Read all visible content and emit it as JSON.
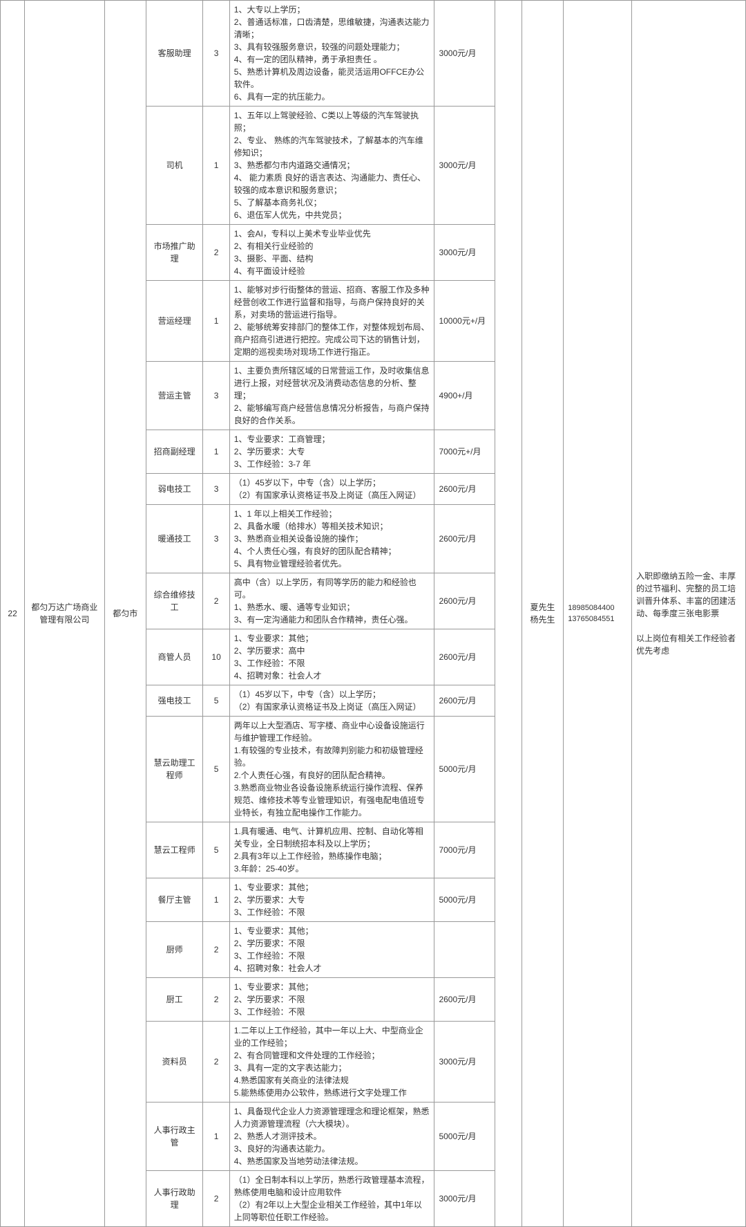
{
  "index": "22",
  "company": "都匀万达广场商业管理有限公司",
  "city": "都匀市",
  "contact": "夏先生\n杨先生",
  "phones": "18985084400\n13765084551",
  "benefits": "入职即缴纳五险一金、丰厚的过节福利、完整的员工培训晋升体系、丰富的团建活动、每季度三张电影票\n\n以上岗位有相关工作经验者优先考虑",
  "positions": [
    {
      "name": "客服助理",
      "count": "3",
      "req": "1、大专以上学历；\n2、普通话标准，口齿清楚，思维敏捷，沟通表达能力清晰；\n3、具有较强服务意识，较强的问题处理能力；\n4、有一定的团队精神，勇于承担责任 。\n5、熟悉计算机及周边设备，能灵活运用OFFCE办公软件。\n6、具有一定的抗压能力。",
      "salary": "3000元/月"
    },
    {
      "name": "司机",
      "count": "1",
      "req": "1、五年以上驾驶经验、C类以上等级的汽车驾驶执照；\n2、专业、 熟练的汽车驾驶技术，了解基本的汽车维修知识；\n3、熟悉都匀市内道路交通情况；\n4、 能力素质 良好的语言表达、沟通能力、责任心、较强的成本意识和服务意识；\n5、了解基本商务礼仪；\n6、退伍军人优先，中共党员；",
      "salary": "3000元/月"
    },
    {
      "name": "市场推广助理",
      "count": "2",
      "req": "1、会AI，专科以上美术专业毕业优先\n2、有相关行业经验的\n3、摄影、平面、结构\n4、有平面设计经验",
      "salary": "3000元/月"
    },
    {
      "name": "营运经理",
      "count": "1",
      "req": "1、能够对步行街整体的营运、招商、客服工作及多种经营创收工作进行监督和指导，与商户保持良好的关系，对卖场的营运进行指导。\n2、能够统筹安排部门的整体工作，对整体规划布局、商户招商引进进行把控。完成公司下达的销售计划，定期的巡视卖场对现场工作进行指正。",
      "salary": "10000元+/月"
    },
    {
      "name": "营运主管",
      "count": "3",
      "req": "1、主要负责所辖区域的日常营运工作，及时收集信息进行上报，对经营状况及消费动态信息的分析、整理；\n2、能够编写商户经营信息情况分析报告，与商户保持良好的合作关系。",
      "salary": "4900+/月"
    },
    {
      "name": "招商副经理",
      "count": "1",
      "req": "1、专业要求：工商管理；\n2、学历要求：大专\n3、工作经验：3-7 年",
      "salary": "7000元+/月"
    },
    {
      "name": "弱电技工",
      "count": "3",
      "req": "（1）45岁以下，中专（含）以上学历；\n（2）有国家承认资格证书及上岗证（高压入网证）",
      "salary": "2600元/月"
    },
    {
      "name": "暖通技工",
      "count": "3",
      "req": "1、1 年以上相关工作经验；\n2、具备水暖（给排水）等相关技术知识；\n3、熟悉商业相关设备设施的操作；\n4、个人责任心强，有良好的团队配合精神；\n5、具有物业管理经验者优先。",
      "salary": "2600元/月"
    },
    {
      "name": "综合维修技工",
      "count": "2",
      "req": "高中（含）以上学历，有同等学历的能力和经验也可。\n1、熟悉水、暖、通等专业知识；\n3、有一定沟通能力和团队合作精神，责任心强。",
      "salary": "2600元/月"
    },
    {
      "name": "商管人员",
      "count": "10",
      "req": "1、专业要求：其他；\n2、学历要求：高中\n3、工作经验：不限\n4、招聘对象：社会人才",
      "salary": "2600元/月"
    },
    {
      "name": "强电技工",
      "count": "5",
      "req": "（1）45岁以下，中专（含）以上学历；\n（2）有国家承认资格证书及上岗证（高压入网证）",
      "salary": "2600元/月"
    },
    {
      "name": "慧云助理工程师",
      "count": "5",
      "req": "两年以上大型酒店、写字楼、商业中心设备设施运行与维护管理工作经验。\n1.有较强的专业技术，有故障判别能力和初级管理经验。\n2.个人责任心强，有良好的团队配合精神。\n3.熟悉商业物业各设备设施系统运行操作流程、保养规范、维修技术等专业管理知识，有强电配电值班专业特长，有独立配电操作工作能力。",
      "salary": "5000元/月"
    },
    {
      "name": "慧云工程师",
      "count": "5",
      "req": "1.具有暖通、电气、计算机应用、控制、自动化等相关专业，全日制统招本科及以上学历；\n2.具有3年以上工作经验，熟练操作电脑；\n3.年龄：25-40岁。",
      "salary": "7000元/月"
    },
    {
      "name": "餐厅主管",
      "count": "1",
      "req": "1、专业要求：其他；\n2、学历要求：大专\n3、工作经验：不限",
      "salary": "5000元/月"
    },
    {
      "name": "厨师",
      "count": "2",
      "req": "1、专业要求：其他；\n2、学历要求：不限\n3、工作经验：不限\n4、招聘对象：社会人才",
      "salary": ""
    },
    {
      "name": "厨工",
      "count": "2",
      "req": "1、专业要求：其他；\n2、学历要求：不限\n3、工作经验：不限",
      "salary": "2600元/月"
    },
    {
      "name": "资料员",
      "count": "2",
      "req": "1.二年以上工作经验，其中一年以上大、中型商业企业的工作经验；\n2、有合同管理和文件处理的工作经验；\n3、具有一定的文字表达能力；\n4.熟悉国家有关商业的法律法规\n5.能熟练使用办公软件，熟练进行文字处理工作",
      "salary": "3000元/月"
    },
    {
      "name": "人事行政主管",
      "count": "1",
      "req": "1、具备现代企业人力资源管理理念和理论框架，熟悉人力资源管理流程（六大模块）。\n2、熟悉人才测评技术。\n3、良好的沟通表达能力。\n4、熟悉国家及当地劳动法律法规。",
      "salary": "5000元/月"
    },
    {
      "name": "人事行政助理",
      "count": "2",
      "req": "（1）全日制本科以上学历，熟悉行政管理基本流程，熟练使用电脑和设计应用软件\n（2）有2年以上大型企业相关工作经验，其中1年以上同等职位任职工作经验。",
      "salary": "3000元/月"
    }
  ]
}
